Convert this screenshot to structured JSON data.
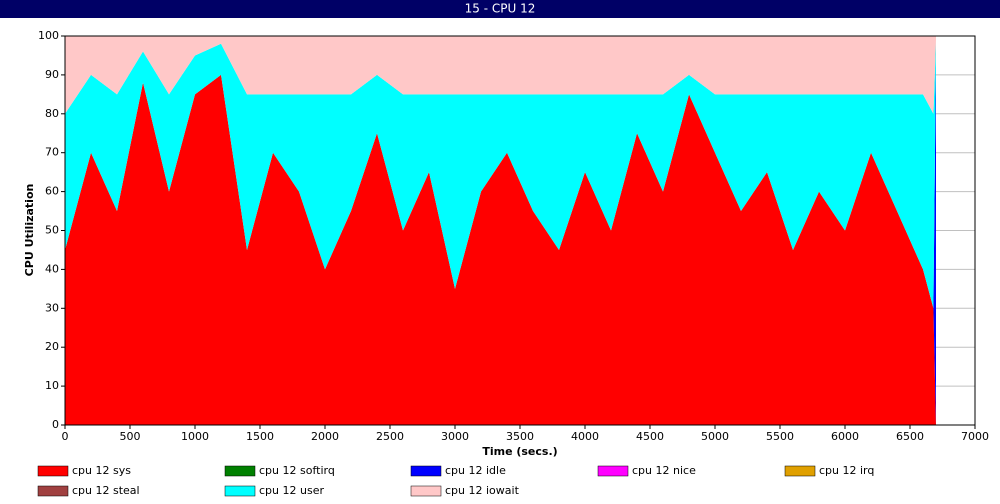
{
  "window_title": "15 - CPU 12",
  "chart_data": {
    "type": "stacked_area",
    "x_label": "Time (secs.)",
    "y_label": "CPU Utilization",
    "x": [
      0,
      200,
      400,
      600,
      800,
      1000,
      1200,
      1400,
      1600,
      1800,
      2000,
      2200,
      2400,
      2600,
      2800,
      3000,
      3200,
      3400,
      3600,
      3800,
      4000,
      4200,
      4400,
      4600,
      4800,
      5000,
      5200,
      5400,
      5600,
      5800,
      6000,
      6200,
      6400,
      6600,
      6680,
      6700
    ],
    "xlim": [
      0,
      7000
    ],
    "xticks": [
      0,
      500,
      1000,
      1500,
      2000,
      2500,
      3000,
      3500,
      4000,
      4500,
      5000,
      5500,
      6000,
      6500,
      7000
    ],
    "ylim": [
      0,
      100
    ],
    "yticks": [
      0,
      10,
      20,
      30,
      40,
      50,
      60,
      70,
      80,
      90,
      100
    ],
    "grid": true,
    "series": [
      {
        "name": "cpu 12 sys",
        "color": "#ff0000",
        "values": [
          45,
          70,
          55,
          88,
          60,
          85,
          90,
          45,
          70,
          60,
          40,
          55,
          75,
          50,
          65,
          35,
          60,
          70,
          55,
          45,
          65,
          50,
          75,
          60,
          85,
          70,
          55,
          65,
          45,
          60,
          50,
          70,
          55,
          40,
          30,
          0
        ]
      },
      {
        "name": "cpu 12 softirq",
        "color": "#008000",
        "values": [
          0,
          0,
          0,
          0,
          0,
          0,
          0,
          0,
          0,
          0,
          0,
          0,
          0,
          0,
          0,
          0,
          0,
          0,
          0,
          0,
          0,
          0,
          0,
          0,
          0,
          0,
          0,
          0,
          0,
          0,
          0,
          0,
          0,
          0,
          0,
          0
        ]
      },
      {
        "name": "cpu 12 idle",
        "color": "#0000ff",
        "values": [
          0,
          0,
          0,
          0,
          0,
          0,
          0,
          0,
          0,
          0,
          0,
          0,
          0,
          0,
          0,
          0,
          0,
          0,
          0,
          0,
          0,
          0,
          0,
          0,
          0,
          0,
          0,
          0,
          0,
          0,
          0,
          0,
          0,
          0,
          0,
          96
        ]
      },
      {
        "name": "cpu 12 nice",
        "color": "#ff00ff",
        "values": [
          0,
          0,
          0,
          0,
          0,
          0,
          0,
          0,
          0,
          0,
          0,
          0,
          0,
          0,
          0,
          0,
          0,
          0,
          0,
          0,
          0,
          0,
          0,
          0,
          0,
          0,
          0,
          0,
          0,
          0,
          0,
          0,
          0,
          0,
          0,
          0
        ]
      },
      {
        "name": "cpu 12 irq",
        "color": "#e0a000",
        "values": [
          0,
          0,
          0,
          0,
          0,
          0,
          0,
          0,
          0,
          0,
          0,
          0,
          0,
          0,
          0,
          0,
          0,
          0,
          0,
          0,
          0,
          0,
          0,
          0,
          0,
          0,
          0,
          0,
          0,
          0,
          0,
          0,
          0,
          0,
          0,
          0
        ]
      },
      {
        "name": "cpu 12 steal",
        "color": "#a04040",
        "values": [
          0,
          0,
          0,
          0,
          0,
          0,
          0,
          0,
          0,
          0,
          0,
          0,
          0,
          0,
          0,
          0,
          0,
          0,
          0,
          0,
          0,
          0,
          0,
          0,
          0,
          0,
          0,
          0,
          0,
          0,
          0,
          0,
          0,
          0,
          0,
          0
        ]
      },
      {
        "name": "cpu 12 user",
        "color": "#00ffff",
        "values": [
          35,
          20,
          30,
          8,
          25,
          10,
          8,
          40,
          15,
          25,
          45,
          30,
          15,
          35,
          20,
          50,
          25,
          15,
          30,
          40,
          20,
          35,
          10,
          25,
          5,
          15,
          30,
          20,
          40,
          25,
          35,
          15,
          30,
          45,
          50,
          3
        ]
      },
      {
        "name": "cpu 12 iowait",
        "color": "#ffc8c8",
        "values": [
          20,
          10,
          15,
          4,
          15,
          5,
          2,
          15,
          15,
          15,
          15,
          15,
          10,
          15,
          15,
          15,
          15,
          15,
          15,
          15,
          15,
          15,
          15,
          15,
          10,
          15,
          15,
          15,
          15,
          15,
          15,
          15,
          15,
          15,
          20,
          1
        ]
      }
    ]
  }
}
